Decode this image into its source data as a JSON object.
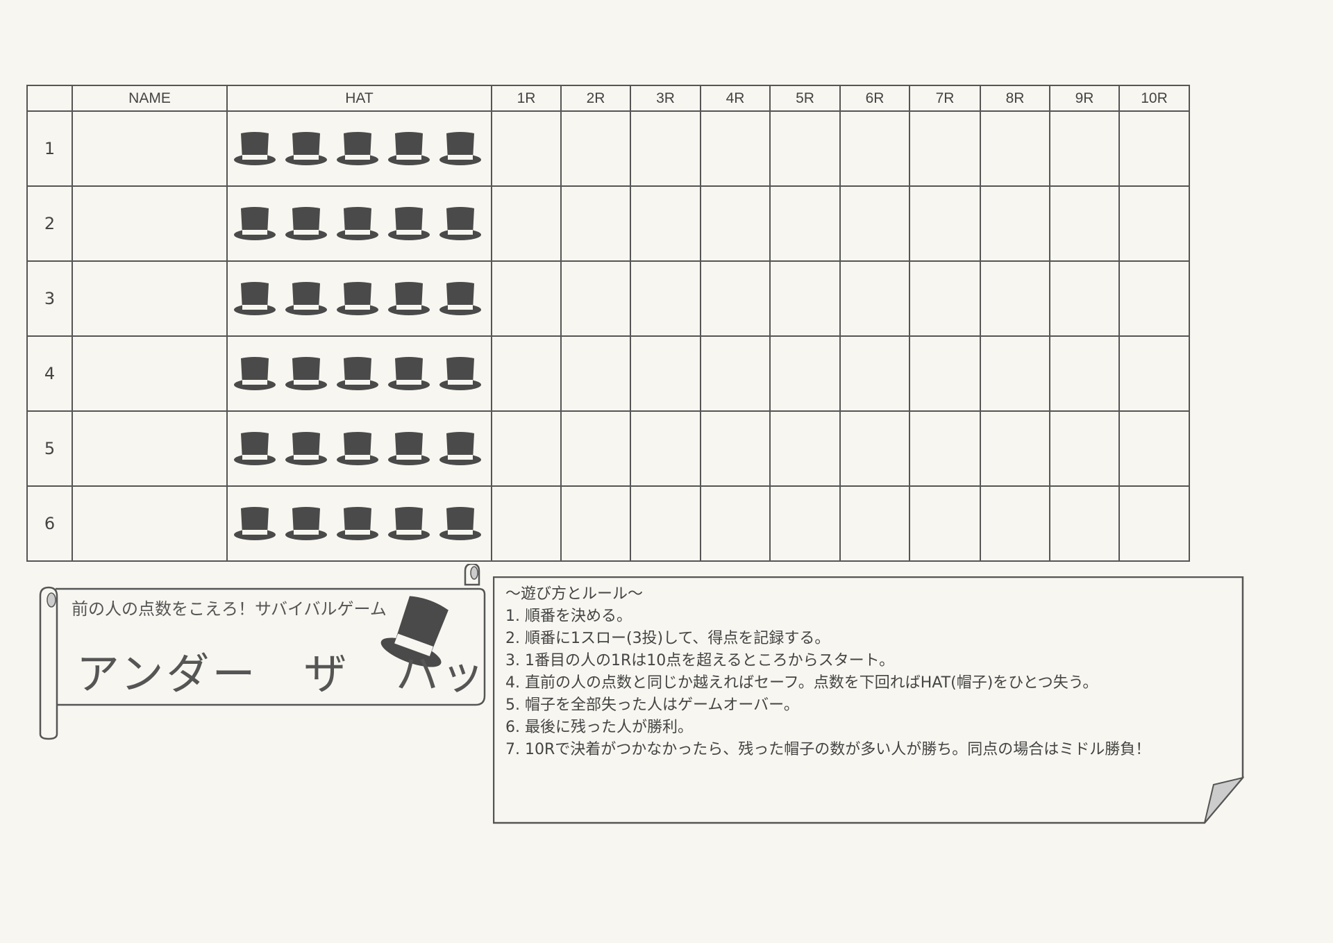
{
  "table": {
    "headers": [
      "",
      "NAME",
      "HAT",
      "1R",
      "2R",
      "3R",
      "4R",
      "5R",
      "6R",
      "7R",
      "8R",
      "9R",
      "10R"
    ],
    "rows": [
      {
        "number": "1",
        "hats": 5
      },
      {
        "number": "2",
        "hats": 5
      },
      {
        "number": "3",
        "hats": 5
      },
      {
        "number": "4",
        "hats": 5
      },
      {
        "number": "5",
        "hats": 5
      },
      {
        "number": "6",
        "hats": 5
      }
    ]
  },
  "banner": {
    "subtitle": "前の人の点数をこえろ！サバイバルゲーム",
    "title": "アンダー　ザ　ハット",
    "icon": "top-hat-icon"
  },
  "rules": {
    "heading": "～遊び方とルール～",
    "items": [
      "1. 順番を決める。",
      "2. 順番に1スロー(3投)して、得点を記録する。",
      "3. 1番目の人の1Rは10点を超えるところからスタート。",
      "4. 直前の人の点数と同じか越えればセーフ。点数を下回ればHAT(帽子)をひとつ失う。",
      "5. 帽子を全部失った人はゲームオーバー。",
      "6. 最後に残った人が勝利。",
      "7. 10Rで決着がつかなかったら、残った帽子の数が多い人が勝ち。同点の場合はミドル勝負！"
    ]
  },
  "colors": {
    "hat": "#4a4a4a",
    "line": "#555555",
    "paper": "#f7f6f0"
  }
}
